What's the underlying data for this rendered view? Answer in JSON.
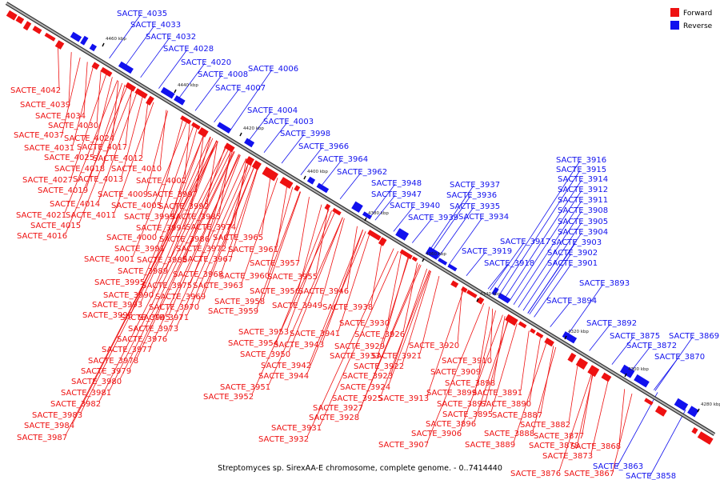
{
  "colors": {
    "forward": "#ee1111",
    "reverse": "#1111ee",
    "axis": "#7a7a7a"
  },
  "legend": {
    "forward_label": "Forward",
    "reverse_label": "Reverse"
  },
  "caption": "Streptomyces sp. SirexAA-E chromosome, complete genome. - 0..7414440",
  "ticks": [
    "4460 kbp",
    "4440 kbp",
    "4420 kbp",
    "4400 kbp",
    "4380 kbp",
    "4360 kbp",
    "4340 kbp",
    "4320 kbp",
    "4300 kbp",
    "4280 kbp"
  ],
  "reverse_labels": [
    "SACTE_4035",
    "SACTE_4033",
    "SACTE_4032",
    "SACTE_4028",
    "SACTE_4020",
    "SACTE_4006",
    "SACTE_4008",
    "SACTE_4007",
    "SACTE_4004",
    "SACTE_4003",
    "SACTE_3998",
    "SACTE_3966",
    "SACTE_3964",
    "SACTE_3962",
    "SACTE_3948",
    "SACTE_3947",
    "SACTE_3940",
    "SACTE_3937",
    "SACTE_3936",
    "SACTE_3935",
    "SACTE_3939",
    "SACTE_3934",
    "SACTE_3916",
    "SACTE_3915",
    "SACTE_3914",
    "SACTE_3912",
    "SACTE_3911",
    "SACTE_3908",
    "SACTE_3905",
    "SACTE_3904",
    "SACTE_3917",
    "SACTE_3903",
    "SACTE_3919",
    "SACTE_3902",
    "SACTE_3918",
    "SACTE_3901",
    "SACTE_3893",
    "SACTE_3894",
    "SACTE_3892",
    "SACTE_3875",
    "SACTE_3869",
    "SACTE_3872",
    "SACTE_3870",
    "SACTE_3863",
    "SACTE_3858"
  ],
  "forward_labels": [
    "SACTE_4042",
    "SACTE_4039",
    "SACTE_4034",
    "SACTE_4030",
    "SACTE_4037",
    "SACTE_4024",
    "SACTE_4031",
    "SACTE_4017",
    "SACTE_4025",
    "SACTE_4012",
    "SACTE_4018",
    "SACTE_4010",
    "SACTE_4027",
    "SACTE_4013",
    "SACTE_4002",
    "SACTE_4019",
    "SACTE_4009",
    "SACTE_3997",
    "SACTE_4014",
    "SACTE_4005",
    "SACTE_3992",
    "SACTE_4021",
    "SACTE_4011",
    "SACTE_3999",
    "SACTE_3985",
    "SACTE_4015",
    "SACTE_3994",
    "SACTE_3974",
    "SACTE_4016",
    "SACTE_4000",
    "SACTE_3986",
    "SACTE_3965",
    "SACTE_3991",
    "SACTE_3972",
    "SACTE_3961",
    "SACTE_4001",
    "SACTE_3988",
    "SACTE_3967",
    "SACTE_3957",
    "SACTE_3989",
    "SACTE_3968",
    "SACTE_3960",
    "SACTE_3955",
    "SACTE_3995",
    "SACTE_3975",
    "SACTE_3963",
    "SACTE_3990",
    "SACTE_3969",
    "SACTE_3956",
    "SACTE_3946",
    "SACTE_3993",
    "SACTE_3970",
    "SACTE_3958",
    "SACTE_3996",
    "SACTE_3959",
    "SACTE_3949",
    "SACTE_3938",
    "SACTE_3945",
    "SACTE_3971",
    "SACTE_3930",
    "SACTE_3973",
    "SACTE_3953",
    "SACTE_3941",
    "SACTE_3926",
    "SACTE_3976",
    "SACTE_3954",
    "SACTE_3943",
    "SACTE_3929",
    "SACTE_3920",
    "SACTE_3977",
    "SACTE_3950",
    "SACTE_3933",
    "SACTE_3921",
    "SACTE_3978",
    "SACTE_3942",
    "SACTE_3922",
    "SACTE_3910",
    "SACTE_3979",
    "SACTE_3944",
    "SACTE_3923",
    "SACTE_3909",
    "SACTE_3980",
    "SACTE_3924",
    "SACTE_3898",
    "SACTE_3951",
    "SACTE_3981",
    "SACTE_3899",
    "SACTE_3891",
    "SACTE_3952",
    "SACTE_3925",
    "SACTE_3913",
    "SACTE_3982",
    "SACTE_3897",
    "SACTE_3890",
    "SACTE_3927",
    "SACTE_3895",
    "SACTE_3983",
    "SACTE_3928",
    "SACTE_3887",
    "SACTE_3984",
    "SACTE_3896",
    "SACTE_3882",
    "SACTE_3931",
    "SACTE_3877",
    "SACTE_3987",
    "SACTE_3906",
    "SACTE_3888",
    "SACTE_3932",
    "SACTE_3889",
    "SACTE_3878",
    "SACTE_3868",
    "SACTE_3907",
    "SACTE_3873",
    "SACTE_3876",
    "SACTE_3867"
  ]
}
